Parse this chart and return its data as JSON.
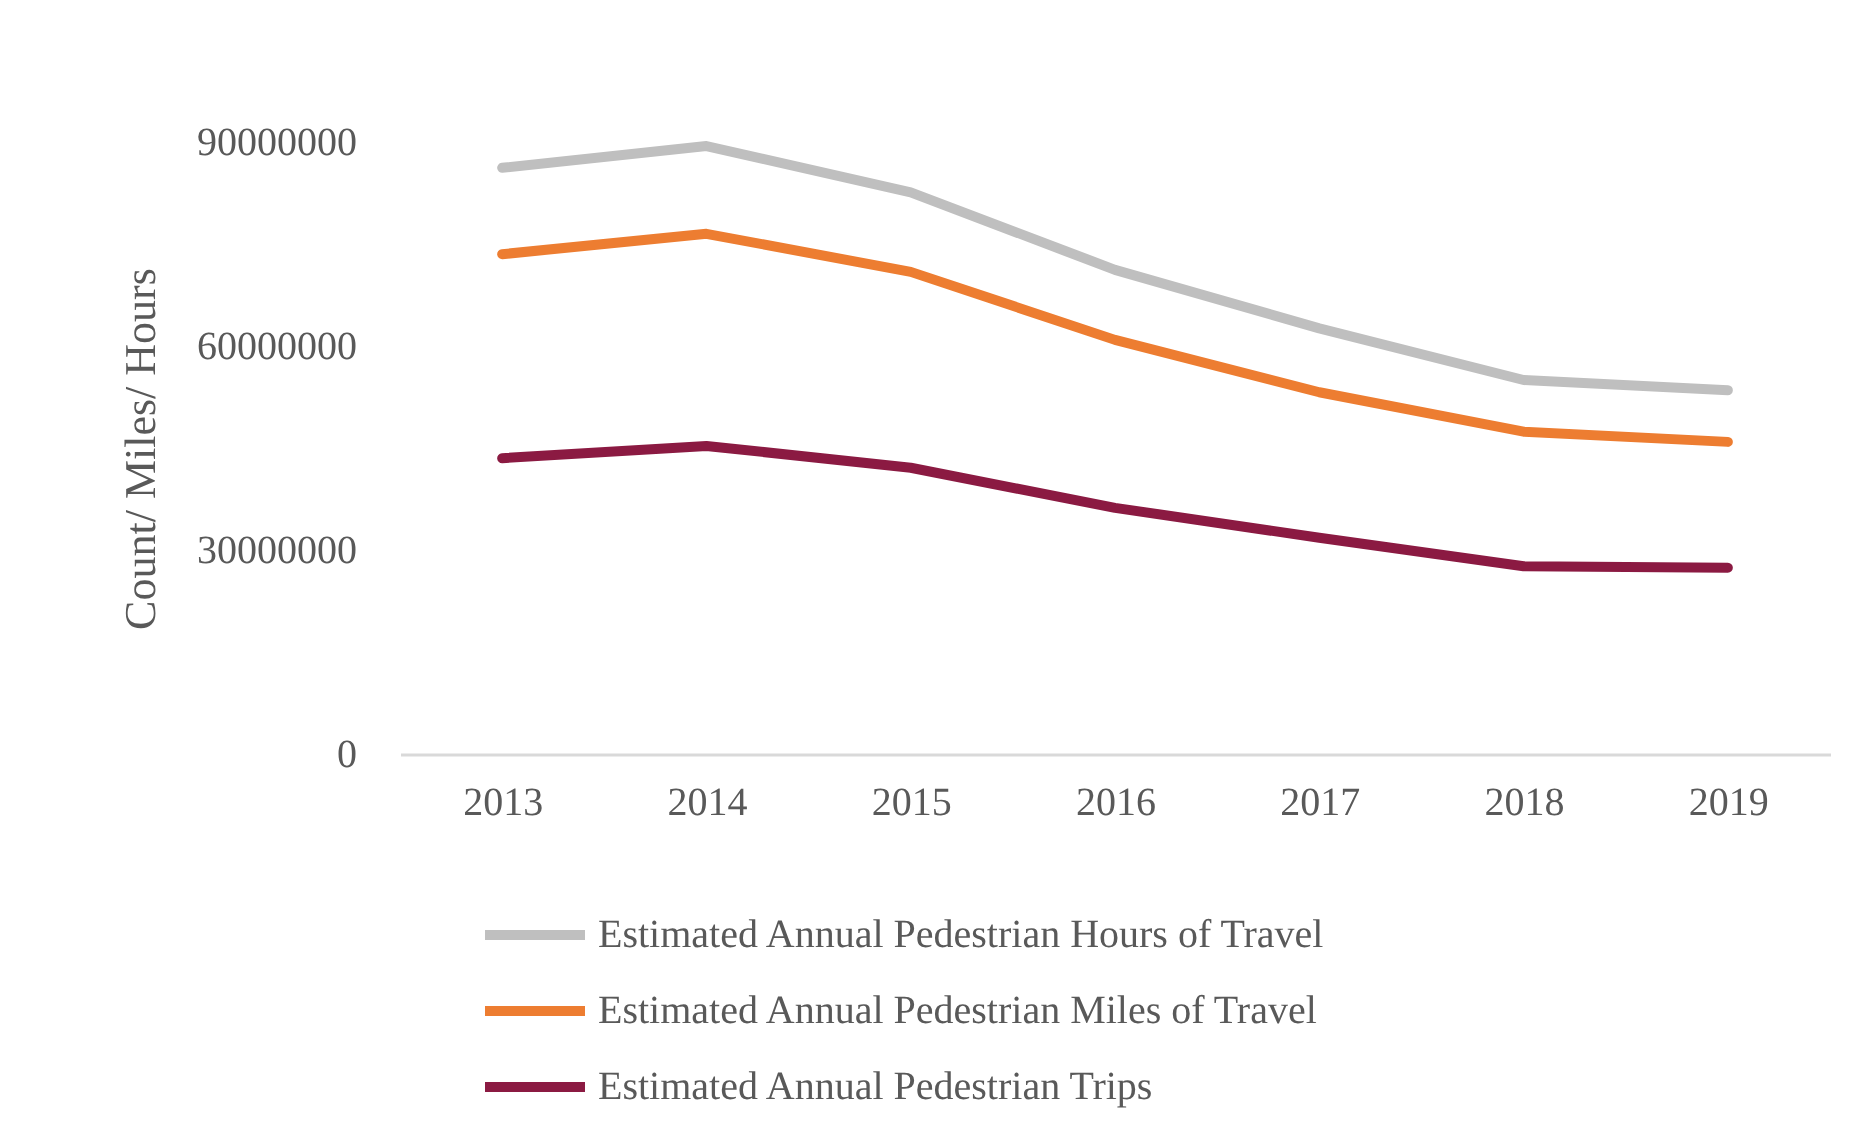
{
  "chart_data": {
    "type": "line",
    "ylabel": "Count/ Miles/ Hours",
    "categories": [
      "2013",
      "2014",
      "2015",
      "2016",
      "2017",
      "2018",
      "2019"
    ],
    "series": [
      {
        "name": "Estimated Annual Pedestrian Hours of Travel",
        "color": "#bfbfbf",
        "values": [
          86200000,
          89400000,
          82600000,
          71200000,
          62600000,
          55000000,
          53500000
        ]
      },
      {
        "name": "Estimated Annual Pedestrian Miles of Travel",
        "color": "#ed7d31",
        "values": [
          73500000,
          76500000,
          70900000,
          60900000,
          53200000,
          47400000,
          45900000
        ]
      },
      {
        "name": "Estimated Annual Pedestrian Trips",
        "color": "#8b1a42",
        "values": [
          43500000,
          45300000,
          42100000,
          36200000,
          31800000,
          27600000,
          27400000
        ]
      }
    ],
    "ylim": [
      0,
      90000000
    ],
    "yticks": [
      0,
      30000000,
      60000000,
      90000000
    ],
    "grid": false,
    "legend": "bottom",
    "marker": "none",
    "line_style": "solid"
  }
}
